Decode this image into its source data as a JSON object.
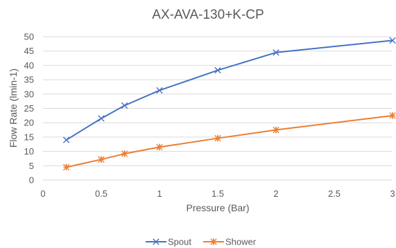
{
  "chart_data": {
    "type": "line",
    "title": "AX-AVA-130+K-CP",
    "xlabel": "Pressure (Bar)",
    "ylabel": "Flow Rate (lmin-1)",
    "xlim": [
      0,
      3
    ],
    "ylim": [
      0,
      50
    ],
    "xticks": [
      "0",
      "0.5",
      "1",
      "1.5",
      "2",
      "2.5",
      "3"
    ],
    "yticks": [
      "0",
      "5",
      "10",
      "15",
      "20",
      "25",
      "30",
      "35",
      "40",
      "45",
      "50"
    ],
    "grid": true,
    "legend_position": "bottom",
    "series": [
      {
        "name": "Spout",
        "color": "#4472C4",
        "marker": "x",
        "x": [
          0.2,
          0.5,
          0.7,
          1.0,
          1.5,
          2.0,
          3.0
        ],
        "y": [
          14.0,
          21.5,
          26.0,
          31.3,
          38.3,
          44.5,
          48.7
        ]
      },
      {
        "name": "Shower",
        "color": "#ED7D31",
        "marker": "star",
        "x": [
          0.2,
          0.5,
          0.7,
          1.0,
          1.5,
          2.0,
          3.0
        ],
        "y": [
          4.5,
          7.2,
          9.2,
          11.5,
          14.6,
          17.5,
          22.5
        ]
      }
    ]
  }
}
